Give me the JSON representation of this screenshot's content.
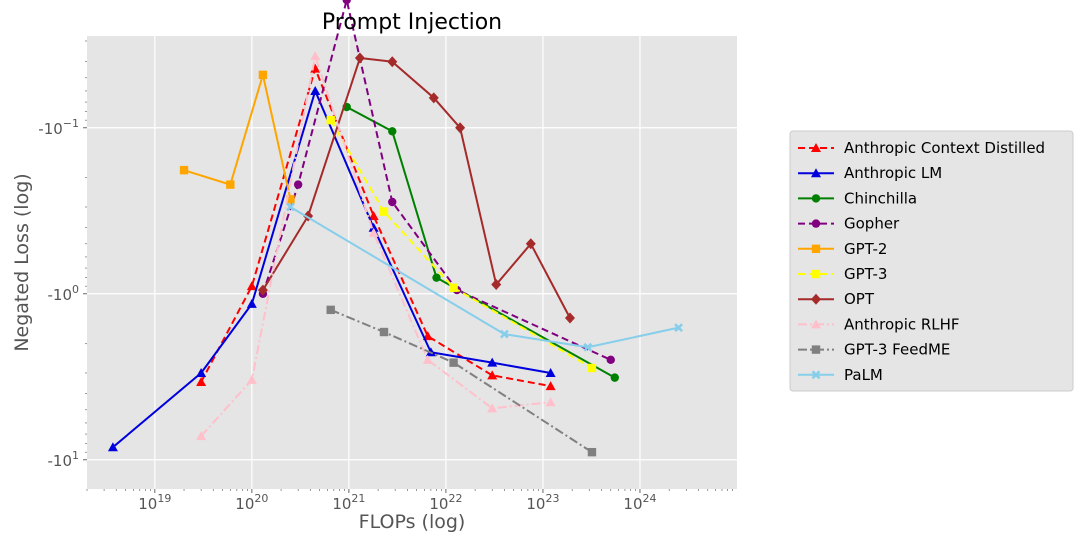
{
  "chart_data": {
    "type": "line",
    "title": "Prompt Injection",
    "xlabel": "FLOPs (log)",
    "ylabel": "Negated Loss (log)",
    "x_scale": "log",
    "y_scale": "symlog-negated",
    "xlim": [
      2e+18,
      1e+25
    ],
    "ylim": [
      -15,
      -0.028
    ],
    "grid": true,
    "legend_position": "outside-right",
    "x_ticks": [
      {
        "value": 1e+19,
        "base": "10",
        "exp": "19"
      },
      {
        "value": 1e+20,
        "base": "10",
        "exp": "20"
      },
      {
        "value": 1e+21,
        "base": "10",
        "exp": "21"
      },
      {
        "value": 1e+22,
        "base": "10",
        "exp": "22"
      },
      {
        "value": 1e+23,
        "base": "10",
        "exp": "23"
      },
      {
        "value": 1e+24,
        "base": "10",
        "exp": "24"
      }
    ],
    "y_ticks": [
      {
        "value": -0.1,
        "base": "-10",
        "exp": "−1"
      },
      {
        "value": -1,
        "base": "-10",
        "exp": "0"
      },
      {
        "value": -10,
        "base": "-10",
        "exp": "1"
      }
    ],
    "series": [
      {
        "name": "Anthropic Context Distilled",
        "color": "#ff0000",
        "dash": "7,4",
        "marker": "triangle",
        "x": [
          3e+19,
          1e+20,
          4.5e+20,
          1.8e+21,
          6.5e+21,
          3e+22,
          1.2e+23
        ],
        "y": [
          -3.4,
          -0.9,
          -0.044,
          -0.34,
          -1.8,
          -3.1,
          -3.6
        ]
      },
      {
        "name": "Anthropic LM",
        "color": "#0000dd",
        "dash": "",
        "marker": "triangle",
        "x": [
          3.7e+18,
          3e+19,
          1e+20,
          4.5e+20,
          1.8e+21,
          7e+21,
          3e+22,
          1.2e+23
        ],
        "y": [
          -8.4,
          -3.0,
          -1.15,
          -0.06,
          -0.4,
          -2.25,
          -2.6,
          -3.0
        ]
      },
      {
        "name": "Chinchilla",
        "color": "#008000",
        "dash": "",
        "marker": "circle",
        "x": [
          9.5e+20,
          2.8e+21,
          8e+21,
          5.5e+23
        ],
        "y": [
          -0.075,
          -0.105,
          -0.8,
          -3.2
        ]
      },
      {
        "name": "Gopher",
        "color": "#800080",
        "dash": "7,4",
        "marker": "circle",
        "x": [
          1.3e+20,
          3e+20,
          9.5e+20,
          2.8e+21,
          1.3e+22,
          5e+23
        ],
        "y": [
          -1.0,
          -0.22,
          -0.017,
          -0.28,
          -0.95,
          -2.5
        ]
      },
      {
        "name": "GPT-2",
        "color": "#ffa500",
        "dash": "",
        "marker": "square",
        "x": [
          2e+19,
          6e+19,
          1.3e+20,
          2.5e+20
        ],
        "y": [
          -0.18,
          -0.22,
          -0.048,
          -0.27
        ]
      },
      {
        "name": "GPT-3",
        "color": "#ffff00",
        "dash": "7,4",
        "marker": "square",
        "x": [
          6.5e+20,
          2.3e+21,
          1.2e+22,
          3.2e+23
        ],
        "y": [
          -0.09,
          -0.32,
          -0.92,
          -2.8
        ]
      },
      {
        "name": "OPT",
        "color": "#a52a2a",
        "dash": "",
        "marker": "diamond",
        "x": [
          1.3e+20,
          3.8e+20,
          1.3e+21,
          2.8e+21,
          7.5e+21,
          1.4e+22,
          3.3e+22,
          7.5e+22,
          1.9e+23
        ],
        "y": [
          -0.95,
          -0.34,
          -0.038,
          -0.04,
          -0.066,
          -0.1,
          -0.88,
          -0.5,
          -1.4
        ]
      },
      {
        "name": "Anthropic RLHF",
        "color": "#ffc0cb",
        "dash": "9,3,2,3",
        "marker": "triangle",
        "x": [
          3e+19,
          1e+20,
          4.5e+20,
          1.8e+21,
          6.5e+21,
          3e+22,
          1.2e+23
        ],
        "y": [
          -7.2,
          -3.3,
          -0.037,
          -0.43,
          -2.5,
          -4.9,
          -4.5
        ]
      },
      {
        "name": "GPT-3 FeedME",
        "color": "#808080",
        "dash": "9,3,2,3",
        "marker": "square",
        "x": [
          6.5e+20,
          2.3e+21,
          1.2e+22,
          3.2e+23
        ],
        "y": [
          -1.25,
          -1.7,
          -2.6,
          -9.0
        ]
      },
      {
        "name": "PaLM",
        "color": "#87ceeb",
        "dash": "",
        "marker": "x",
        "x": [
          2.5e+20,
          4e+22,
          2.9e+23,
          2.5e+24
        ],
        "y": [
          -0.3,
          -1.75,
          -2.1,
          -1.6
        ]
      }
    ]
  }
}
